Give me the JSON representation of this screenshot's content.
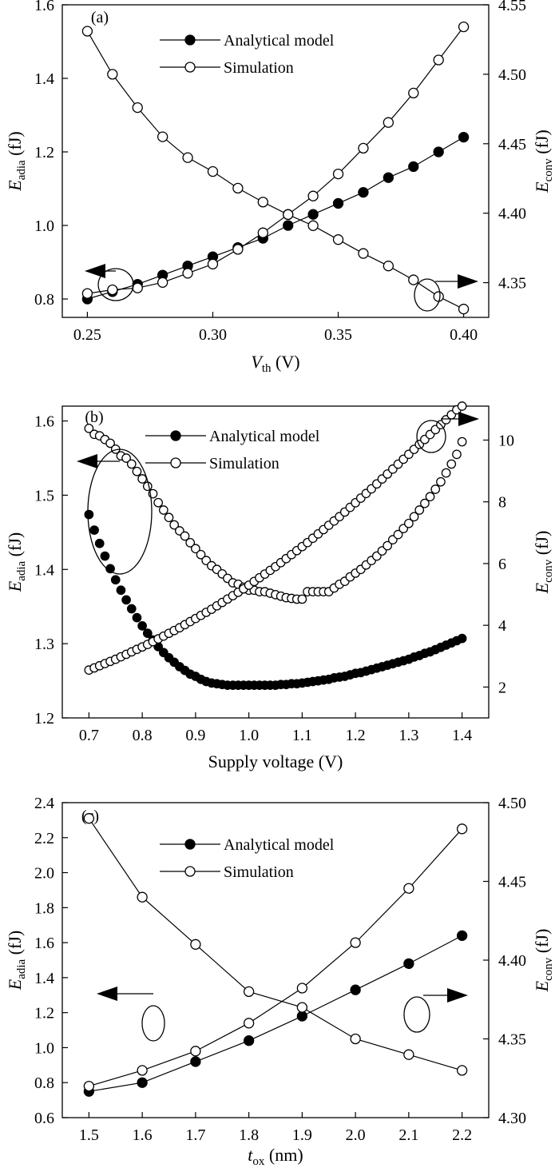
{
  "chart_data": [
    {
      "type": "line",
      "panel_label": "(a)",
      "xlabel": {
        "main": "V",
        "sub": "th",
        "unit": " (V)"
      },
      "ylabel_left": {
        "main": "E",
        "sub": "adia",
        "unit": " (fJ)"
      },
      "ylabel_right": {
        "main": "E",
        "sub": "conv",
        "unit": " (fJ)"
      },
      "xlim": [
        0.24,
        0.41
      ],
      "ylim_left": [
        0.75,
        1.6
      ],
      "ylim_right": [
        4.325,
        4.55
      ],
      "x_ticks": [
        "0.25",
        "0.30",
        "0.35",
        "0.40"
      ],
      "y_ticks_left": [
        "0.8",
        "1.0",
        "1.2",
        "1.4",
        "1.6"
      ],
      "y_ticks_right": [
        "4.35",
        "4.40",
        "4.45",
        "4.50",
        "4.55"
      ],
      "legend": [
        "Analytical model",
        "Simulation"
      ],
      "legend_position": "top-center",
      "x": [
        0.25,
        0.26,
        0.27,
        0.28,
        0.29,
        0.3,
        0.31,
        0.32,
        0.33,
        0.34,
        0.35,
        0.36,
        0.37,
        0.38,
        0.39,
        0.4
      ],
      "series": [
        {
          "name": "Analytical model",
          "axis": "left",
          "marker": "filled",
          "values": [
            0.8,
            0.82,
            0.84,
            0.865,
            0.89,
            0.915,
            0.94,
            0.965,
            1.0,
            1.03,
            1.06,
            1.09,
            1.13,
            1.16,
            1.2,
            1.24
          ]
        },
        {
          "name": "Simulation",
          "axis": "left",
          "marker": "open",
          "values": [
            0.815,
            0.825,
            0.83,
            0.845,
            0.87,
            0.895,
            0.935,
            0.98,
            1.03,
            1.08,
            1.14,
            1.21,
            1.28,
            1.36,
            1.45,
            1.54
          ]
        },
        {
          "name": "Simulation",
          "axis": "right",
          "marker": "open",
          "values": [
            4.531,
            4.5,
            4.476,
            4.455,
            4.44,
            4.43,
            4.418,
            4.408,
            4.399,
            4.391,
            4.381,
            4.371,
            4.362,
            4.352,
            4.34,
            4.331
          ]
        }
      ]
    },
    {
      "type": "scatter",
      "panel_label": "(b)",
      "xlabel": {
        "main": "Supply voltage",
        "sub": "",
        "unit": " (V)"
      },
      "ylabel_left": {
        "main": "E",
        "sub": "adia",
        "unit": " (fJ)"
      },
      "ylabel_right": {
        "main": "E",
        "sub": "conv",
        "unit": " (fJ)"
      },
      "xlim": [
        0.65,
        1.45
      ],
      "ylim_left": [
        1.2,
        1.62
      ],
      "ylim_right": [
        1.0,
        11.1
      ],
      "x_ticks": [
        "0.7",
        "0.8",
        "0.9",
        "1.0",
        "1.1",
        "1.2",
        "1.3",
        "1.4"
      ],
      "y_ticks_left": [
        "1.2",
        "1.3",
        "1.4",
        "1.5",
        "1.6"
      ],
      "y_ticks_right": [
        "2",
        "4",
        "6",
        "8",
        "10"
      ],
      "legend": [
        "Analytical model",
        "Simulation"
      ],
      "legend_position": "top-center",
      "x_range": [
        0.7,
        1.4,
        0.01
      ],
      "series": [
        {
          "name": "Analytical model",
          "axis": "left",
          "marker": "filled",
          "values": [
            1.474,
            1.453,
            1.435,
            1.418,
            1.401,
            1.386,
            1.372,
            1.359,
            1.347,
            1.335,
            1.324,
            1.314,
            1.305,
            1.296,
            1.288,
            1.281,
            1.275,
            1.269,
            1.264,
            1.259,
            1.256,
            1.252,
            1.249,
            1.247,
            1.246,
            1.245,
            1.244,
            1.244,
            1.244,
            1.244,
            1.244,
            1.244,
            1.244,
            1.244,
            1.244,
            1.244,
            1.245,
            1.245,
            1.246,
            1.246,
            1.247,
            1.248,
            1.249,
            1.25,
            1.251,
            1.252,
            1.254,
            1.255,
            1.256,
            1.258,
            1.26,
            1.261,
            1.263,
            1.265,
            1.267,
            1.269,
            1.271,
            1.273,
            1.275,
            1.277,
            1.279,
            1.282,
            1.284,
            1.287,
            1.289,
            1.292,
            1.295,
            1.298,
            1.301,
            1.304,
            1.307
          ]
        },
        {
          "name": "Simulation",
          "axis": "left",
          "marker": "open",
          "values": [
            1.59,
            1.582,
            1.58,
            1.575,
            1.57,
            1.562,
            1.553,
            1.55,
            1.542,
            1.532,
            1.522,
            1.512,
            1.502,
            1.49,
            1.48,
            1.47,
            1.46,
            1.452,
            1.445,
            1.436,
            1.428,
            1.42,
            1.412,
            1.405,
            1.4,
            1.394,
            1.388,
            1.382,
            1.38,
            1.376,
            1.372,
            1.372,
            1.37,
            1.37,
            1.368,
            1.366,
            1.364,
            1.362,
            1.361,
            1.36,
            1.36,
            1.37,
            1.37,
            1.37,
            1.37,
            1.37,
            1.375,
            1.38,
            1.384,
            1.39,
            1.395,
            1.4,
            1.406,
            1.412,
            1.418,
            1.425,
            1.432,
            1.44,
            1.447,
            1.455,
            1.462,
            1.471,
            1.48,
            1.489,
            1.498,
            1.508,
            1.518,
            1.53,
            1.542,
            1.555,
            1.572
          ]
        },
        {
          "name": "Simulation",
          "axis": "right",
          "marker": "open",
          "values": [
            2.55,
            2.62,
            2.69,
            2.76,
            2.83,
            2.9,
            2.98,
            3.06,
            3.14,
            3.22,
            3.3,
            3.38,
            3.47,
            3.56,
            3.65,
            3.74,
            3.83,
            3.92,
            4.02,
            4.12,
            4.22,
            4.32,
            4.42,
            4.52,
            4.63,
            4.74,
            4.85,
            4.96,
            5.07,
            5.18,
            5.3,
            5.42,
            5.54,
            5.66,
            5.78,
            5.9,
            6.03,
            6.16,
            6.29,
            6.42,
            6.55,
            6.68,
            6.82,
            6.96,
            7.1,
            7.24,
            7.38,
            7.52,
            7.67,
            7.82,
            7.97,
            8.12,
            8.27,
            8.42,
            8.58,
            8.74,
            8.9,
            9.06,
            9.22,
            9.38,
            9.54,
            9.7,
            9.86,
            10.02,
            10.18,
            10.34,
            10.5,
            10.66,
            10.82,
            10.98,
            11.1
          ]
        }
      ]
    },
    {
      "type": "line",
      "panel_label": "(c)",
      "xlabel": {
        "main": "t",
        "sub": "ox",
        "unit": " (nm)"
      },
      "ylabel_left": {
        "main": "E",
        "sub": "adia",
        "unit": " (fJ)"
      },
      "ylabel_right": {
        "main": "E",
        "sub": "conv",
        "unit": " (fJ)"
      },
      "xlim": [
        1.45,
        2.25
      ],
      "ylim_left": [
        0.6,
        2.4
      ],
      "ylim_right": [
        4.3,
        4.5
      ],
      "x_ticks": [
        "1.5",
        "1.6",
        "1.7",
        "1.8",
        "1.9",
        "2.0",
        "2.1",
        "2.2"
      ],
      "y_ticks_left": [
        "0.6",
        "0.8",
        "1.0",
        "1.2",
        "1.4",
        "1.6",
        "1.8",
        "2.0",
        "2.2",
        "2.4"
      ],
      "y_ticks_right": [
        "4.30",
        "4.35",
        "4.40",
        "4.45",
        "4.50"
      ],
      "legend": [
        "Analytical model",
        "Simulation"
      ],
      "legend_position": "top-center",
      "x": [
        1.5,
        1.6,
        1.7,
        1.8,
        1.9,
        2.0,
        2.1,
        2.2
      ],
      "series": [
        {
          "name": "Analytical model",
          "axis": "left",
          "marker": "filled",
          "values": [
            0.75,
            0.8,
            0.92,
            1.04,
            1.18,
            1.33,
            1.48,
            1.64
          ]
        },
        {
          "name": "Simulation",
          "axis": "left",
          "marker": "open",
          "values": [
            0.78,
            0.87,
            0.98,
            1.14,
            1.34,
            1.6,
            1.91,
            2.25
          ]
        },
        {
          "name": "Simulation",
          "axis": "right",
          "marker": "open",
          "values": [
            4.49,
            4.44,
            4.41,
            4.38,
            4.37,
            4.35,
            4.34,
            4.33
          ]
        }
      ]
    }
  ]
}
